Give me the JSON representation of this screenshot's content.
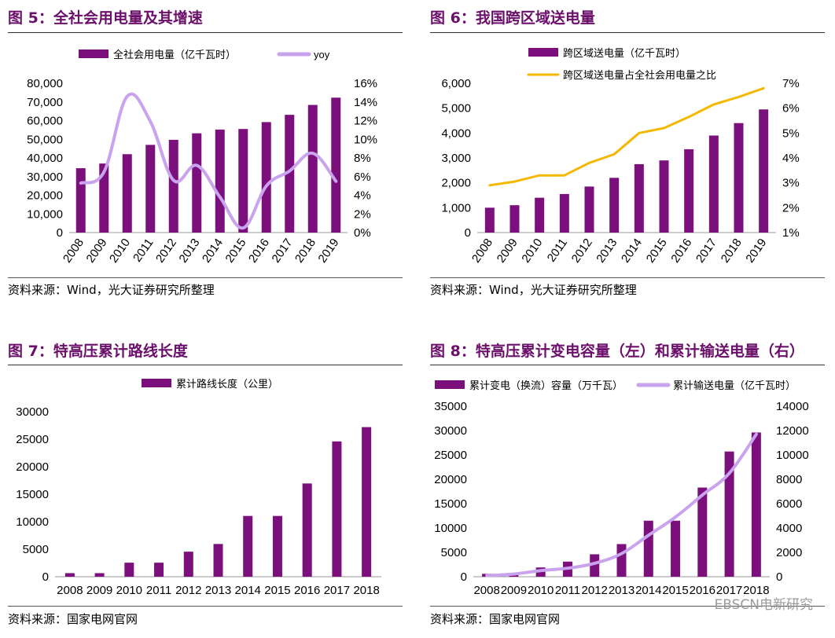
{
  "watermark": "EBSCN电新研究",
  "colors": {
    "bar": "#7b0f7b",
    "line_yoy": "#c9a3ee",
    "line_gold": "#f5b800",
    "title": "#6b0f6b"
  },
  "panels": [
    {
      "title": "图 5：全社会用电量及其增速",
      "source": "资料来源：Wind，光大证券研究所整理",
      "chart_data": {
        "type": "bar",
        "categories": [
          "2008",
          "2009",
          "2010",
          "2011",
          "2012",
          "2013",
          "2014",
          "2015",
          "2016",
          "2017",
          "2018",
          "2019"
        ],
        "x_rotated": true,
        "series": [
          {
            "name": "全社会用电量（亿千瓦时）",
            "type": "bar",
            "axis": "left",
            "values": [
              34500,
              37000,
              42000,
              47000,
              49700,
              53200,
              55200,
              55500,
              59200,
              63100,
              68400,
              72300
            ]
          },
          {
            "name": "yoy",
            "type": "line",
            "axis": "right",
            "values": [
              5.3,
              6.5,
              14.6,
              11.9,
              5.6,
              7.2,
              3.8,
              0.5,
              5.0,
              6.6,
              8.5,
              5.5
            ]
          }
        ],
        "left_axis": {
          "min": 0,
          "max": 80000,
          "step": 10000,
          "ticks": [
            "0",
            "10,000",
            "20,000",
            "30,000",
            "40,000",
            "50,000",
            "60,000",
            "70,000",
            "80,000"
          ]
        },
        "right_axis": {
          "min": 0,
          "max": 16,
          "step": 2,
          "ticks": [
            "0%",
            "2%",
            "4%",
            "6%",
            "8%",
            "10%",
            "12%",
            "14%",
            "16%"
          ]
        },
        "legend": "top"
      }
    },
    {
      "title": "图 6：我国跨区域送电量",
      "source": "资料来源：Wind，光大证券研究所整理",
      "chart_data": {
        "type": "bar",
        "categories": [
          "2008",
          "2009",
          "2010",
          "2011",
          "2012",
          "2013",
          "2014",
          "2015",
          "2016",
          "2017",
          "2018",
          "2019"
        ],
        "x_rotated": true,
        "series": [
          {
            "name": "跨区域送电量（亿千瓦时）",
            "type": "bar",
            "axis": "left",
            "values": [
              1000,
              1100,
              1400,
              1550,
              1850,
              2200,
              2750,
              2900,
              3350,
              3900,
              4400,
              4950
            ]
          },
          {
            "name": "跨区域送电量占全社会用电量之比",
            "type": "line",
            "axis": "right",
            "values": [
              2.9,
              3.05,
              3.3,
              3.3,
              3.8,
              4.15,
              5.0,
              5.2,
              5.65,
              6.15,
              6.45,
              6.8
            ]
          }
        ],
        "left_axis": {
          "min": 0,
          "max": 6000,
          "step": 1000,
          "ticks": [
            "0",
            "1,000",
            "2,000",
            "3,000",
            "4,000",
            "5,000",
            "6,000"
          ]
        },
        "right_axis": {
          "min": 1,
          "max": 7,
          "step": 1,
          "ticks": [
            "1%",
            "2%",
            "3%",
            "4%",
            "5%",
            "6%",
            "7%"
          ]
        },
        "legend": "top"
      }
    },
    {
      "title": "图 7：特高压累计路线长度",
      "source": "资料来源：国家电网官网",
      "chart_data": {
        "type": "bar",
        "categories": [
          "2008",
          "2009",
          "2010",
          "2011",
          "2012",
          "2013",
          "2014",
          "2015",
          "2016",
          "2017",
          "2018"
        ],
        "x_rotated": false,
        "series": [
          {
            "name": "累计路线长度（公里）",
            "type": "bar",
            "axis": "left",
            "values": [
              650,
              650,
              2550,
              2550,
              4550,
              5950,
              11050,
              11050,
              16950,
              24600,
              27200
            ]
          }
        ],
        "left_axis": {
          "min": 0,
          "max": 30000,
          "step": 5000,
          "ticks": [
            "0",
            "5000",
            "10000",
            "15000",
            "20000",
            "25000",
            "30000"
          ]
        },
        "legend": "top"
      }
    },
    {
      "title": "图 8：特高压累计变电容量（左）和累计输送电量（右）",
      "source": "资料来源：国家电网官网",
      "chart_data": {
        "type": "bar",
        "categories": [
          "2008",
          "2009",
          "2010",
          "2011",
          "2012",
          "2013",
          "2014",
          "2015",
          "2016",
          "2017",
          "2018"
        ],
        "x_rotated": false,
        "series": [
          {
            "name": "累计变电（换流）容量（万千瓦）",
            "type": "bar",
            "axis": "left",
            "values": [
              600,
              600,
              1900,
              3100,
              4600,
              6700,
              11500,
              11500,
              18300,
              25700,
              29600
            ]
          },
          {
            "name": "累计输送电量（亿千瓦时）",
            "type": "line",
            "axis": "right",
            "values": [
              100,
              220,
              500,
              700,
              1100,
              1900,
              3400,
              4900,
              6700,
              8500,
              11700
            ]
          }
        ],
        "left_axis": {
          "min": 0,
          "max": 35000,
          "step": 5000,
          "ticks": [
            "0",
            "5000",
            "10000",
            "15000",
            "20000",
            "25000",
            "30000",
            "35000"
          ]
        },
        "right_axis": {
          "min": 0,
          "max": 14000,
          "step": 2000,
          "ticks": [
            "0",
            "2000",
            "4000",
            "6000",
            "8000",
            "10000",
            "12000",
            "14000"
          ]
        },
        "legend": "top"
      }
    }
  ]
}
